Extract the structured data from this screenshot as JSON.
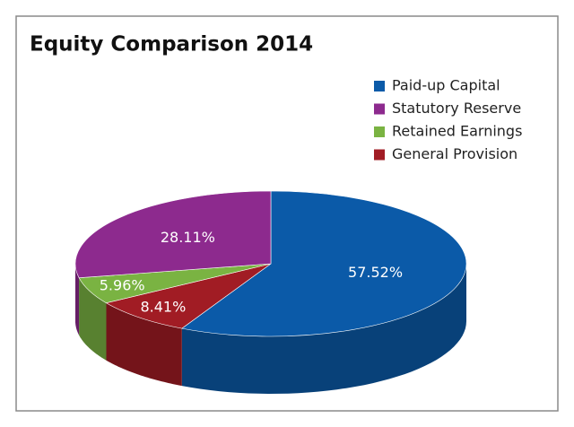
{
  "chart_data": {
    "type": "pie3d",
    "title": "Equity Comparison 2014",
    "categories": [
      "Paid-up Capital",
      "Statutory Reserve",
      "Retained Earnings",
      "General Provision"
    ],
    "values": [
      57.52,
      28.11,
      5.96,
      8.41
    ],
    "value_labels": [
      "57.52%",
      "28.11%",
      "5.96%",
      "8.41%"
    ],
    "colors": [
      "#0b5aa8",
      "#8d2a8e",
      "#7ab342",
      "#a11c24"
    ],
    "order": [
      0,
      3,
      2,
      1
    ],
    "legend": "top-right"
  }
}
